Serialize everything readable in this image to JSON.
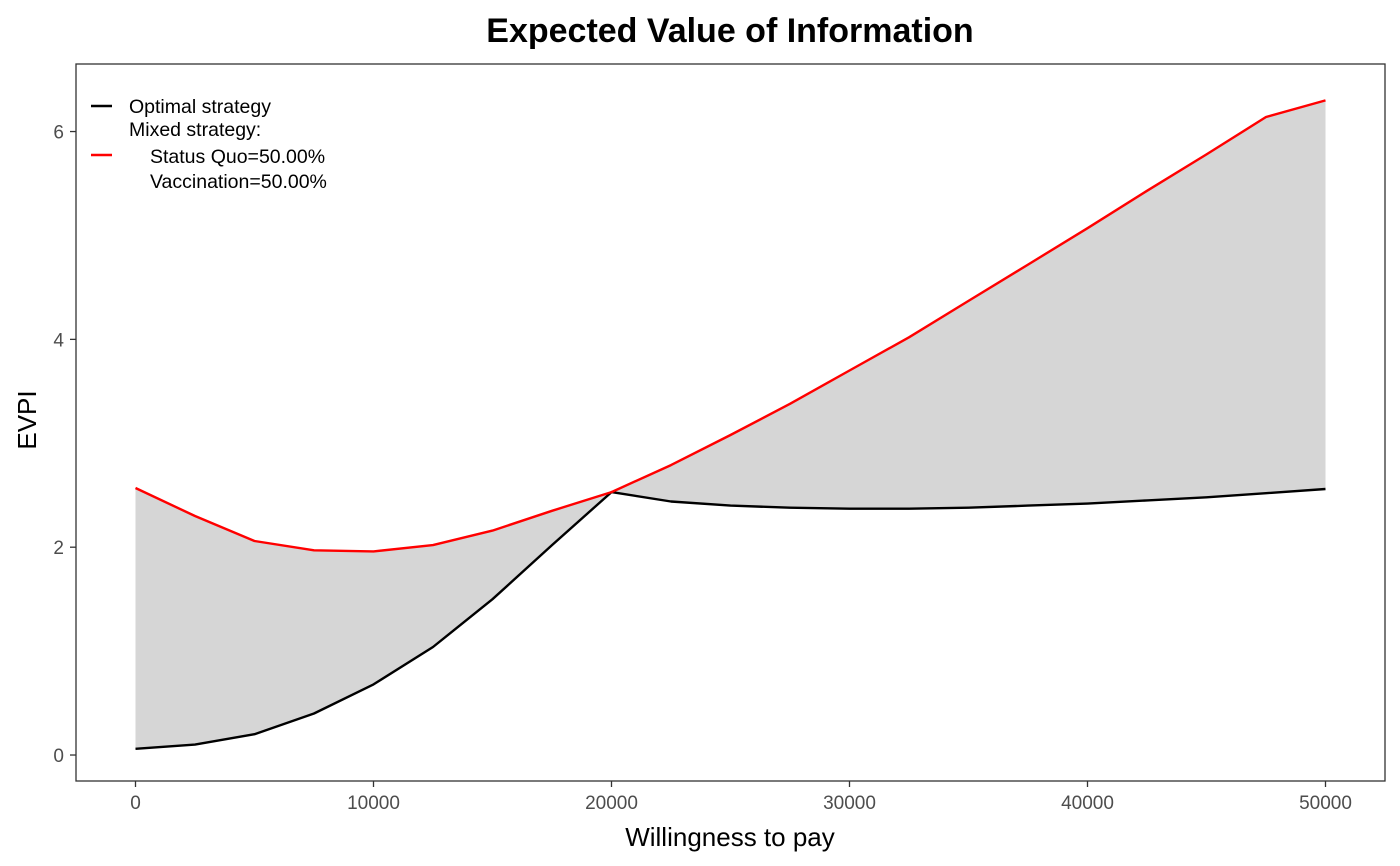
{
  "chart_data": {
    "type": "line",
    "title": "Expected Value of Information",
    "xlabel": "Willingness to pay",
    "ylabel": "EVPI",
    "xlim": [
      -2500,
      52500
    ],
    "ylim": [
      -0.25,
      6.65
    ],
    "x_ticks": [
      0,
      10000,
      20000,
      30000,
      40000,
      50000
    ],
    "x_tick_labels": [
      "0",
      "10000",
      "20000",
      "30000",
      "40000",
      "50000"
    ],
    "y_ticks": [
      0,
      2,
      4,
      6
    ],
    "y_tick_labels": [
      "0",
      "2",
      "4",
      "6"
    ],
    "grid": false,
    "legend_position": "top-left",
    "fill_between_series": true,
    "fill_color": "#d6d6d6",
    "x": [
      0,
      2500,
      5000,
      7500,
      10000,
      12500,
      15000,
      17500,
      20000,
      22500,
      25000,
      27500,
      30000,
      32500,
      35000,
      37500,
      40000,
      42500,
      45000,
      47500,
      50000
    ],
    "series": [
      {
        "name": "Optimal strategy",
        "color": "#000000",
        "values": [
          0.06,
          0.1,
          0.2,
          0.4,
          0.68,
          1.04,
          1.5,
          2.02,
          2.53,
          2.44,
          2.4,
          2.38,
          2.37,
          2.37,
          2.38,
          2.4,
          2.42,
          2.45,
          2.48,
          2.52,
          2.56
        ]
      },
      {
        "name": "Mixed strategy:",
        "color": "#ff0000",
        "values": [
          2.57,
          2.3,
          2.06,
          1.97,
          1.96,
          2.02,
          2.16,
          2.35,
          2.53,
          2.79,
          3.08,
          3.38,
          3.7,
          4.02,
          4.37,
          4.72,
          5.07,
          5.43,
          5.78,
          6.14,
          6.3
        ]
      }
    ],
    "legend": {
      "optimal_label": "Optimal strategy",
      "mixed_label": "Mixed strategy:",
      "mixed_detail_1": "Status Quo=50.00%",
      "mixed_detail_2": "Vaccination=50.00%"
    }
  }
}
